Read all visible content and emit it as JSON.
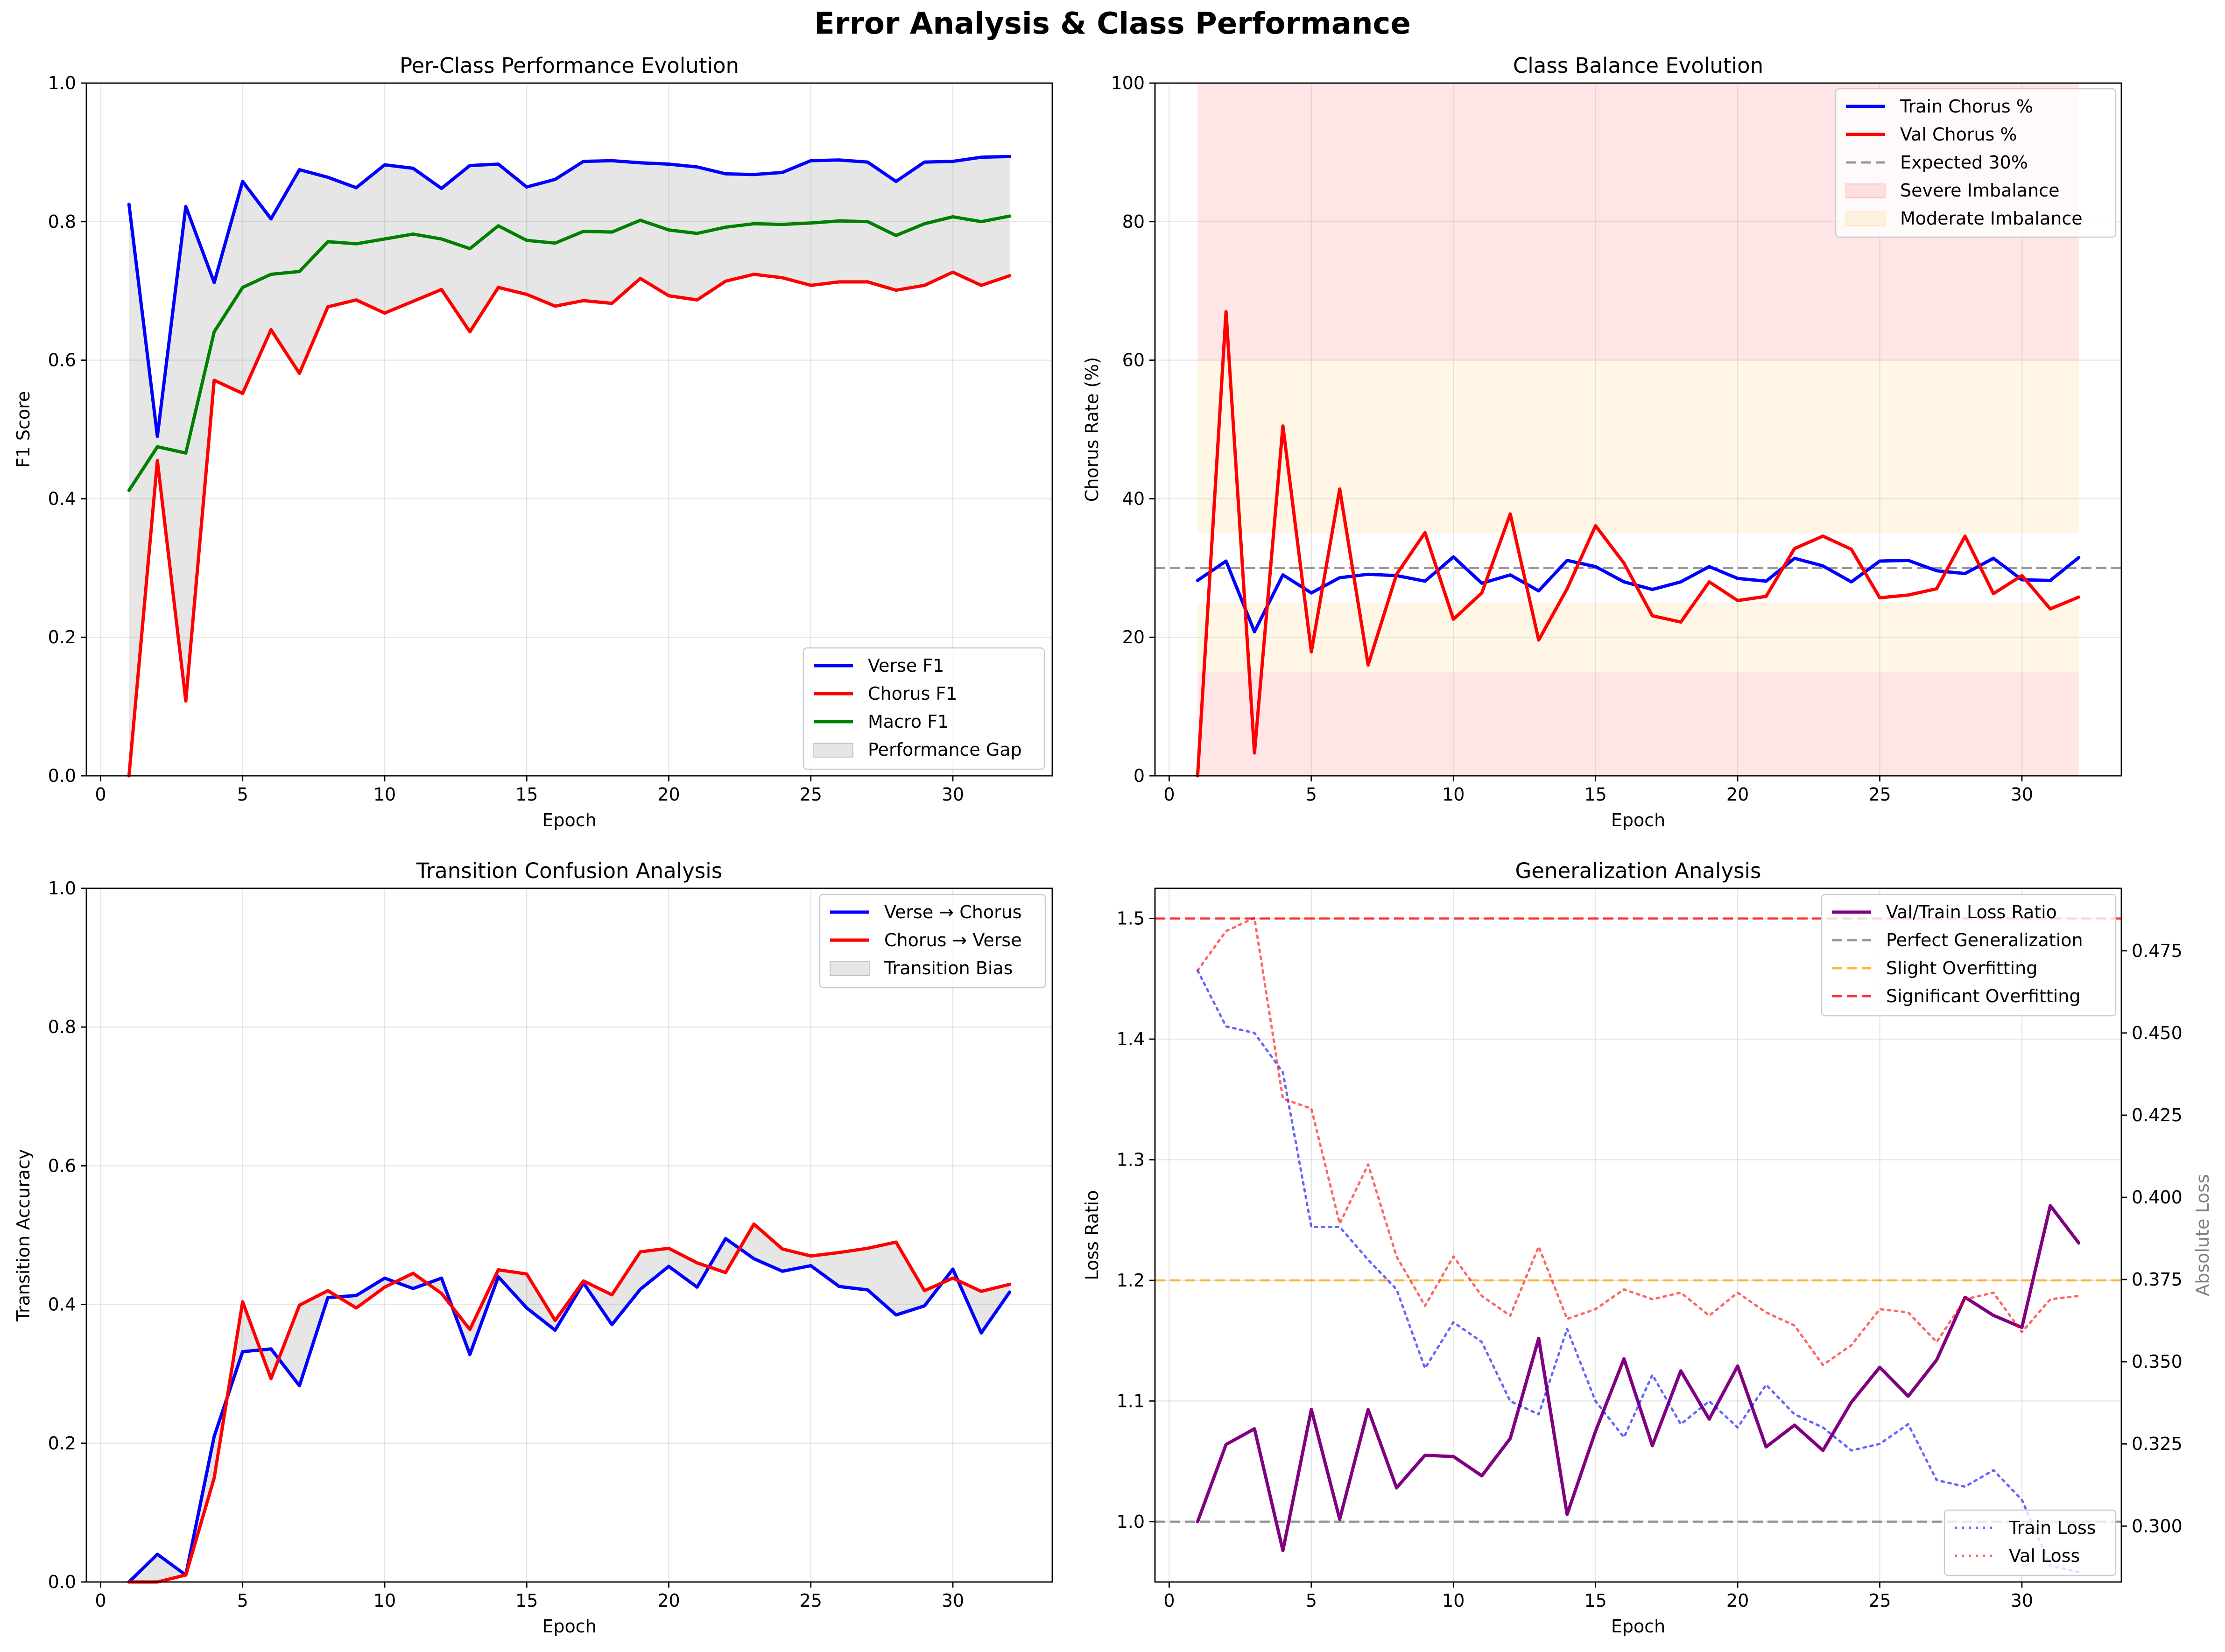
{
  "figure": {
    "suptitle": "Error Analysis & Class Performance"
  },
  "chart_data": [
    {
      "id": "p1",
      "type": "line",
      "title": "Per-Class Performance Evolution",
      "xlabel": "Epoch",
      "ylabel": "F1 Score",
      "xlim": [
        -0.5,
        33.5
      ],
      "ylim": [
        0,
        1.0
      ],
      "xticks": [
        0,
        5,
        10,
        15,
        20,
        25,
        30
      ],
      "yticks": [
        0.0,
        0.2,
        0.4,
        0.6,
        0.8,
        1.0
      ],
      "ytick_labels": [
        "0.0",
        "0.2",
        "0.4",
        "0.6",
        "0.8",
        "1.0"
      ],
      "grid": true,
      "legend_position": "lower-right",
      "x": [
        1,
        2,
        3,
        4,
        5,
        6,
        7,
        8,
        9,
        10,
        11,
        12,
        13,
        14,
        15,
        16,
        17,
        18,
        19,
        20,
        21,
        22,
        23,
        24,
        25,
        26,
        27,
        28,
        29,
        30,
        31,
        32
      ],
      "series": [
        {
          "name": "Verse F1",
          "color": "#0000ff",
          "style": "solid",
          "values": [
            0.825,
            0.49,
            0.822,
            0.712,
            0.858,
            0.804,
            0.875,
            0.864,
            0.849,
            0.882,
            0.877,
            0.848,
            0.881,
            0.883,
            0.85,
            0.861,
            0.887,
            0.888,
            0.885,
            0.883,
            0.879,
            0.869,
            0.868,
            0.871,
            0.888,
            0.889,
            0.886,
            0.858,
            0.886,
            0.887,
            0.893,
            0.894
          ]
        },
        {
          "name": "Chorus F1",
          "color": "#ff0000",
          "style": "solid",
          "values": [
            0.0,
            0.455,
            0.108,
            0.571,
            0.552,
            0.644,
            0.581,
            0.677,
            0.687,
            0.668,
            0.685,
            0.702,
            0.641,
            0.705,
            0.695,
            0.678,
            0.686,
            0.682,
            0.718,
            0.693,
            0.687,
            0.714,
            0.724,
            0.719,
            0.708,
            0.713,
            0.713,
            0.701,
            0.708,
            0.727,
            0.708,
            0.722
          ]
        },
        {
          "name": "Macro F1",
          "color": "#008000",
          "style": "solid",
          "values": [
            0.412,
            0.475,
            0.466,
            0.641,
            0.705,
            0.724,
            0.728,
            0.771,
            0.768,
            0.775,
            0.782,
            0.775,
            0.761,
            0.794,
            0.773,
            0.769,
            0.786,
            0.785,
            0.802,
            0.788,
            0.783,
            0.792,
            0.797,
            0.796,
            0.798,
            0.801,
            0.8,
            0.78,
            0.797,
            0.807,
            0.8,
            0.808
          ]
        }
      ],
      "fills": [
        {
          "name": "Performance Gap",
          "between": [
            "Verse F1",
            "Chorus F1"
          ],
          "color": "#808080",
          "alpha": 0.2
        }
      ]
    },
    {
      "id": "p2",
      "type": "line",
      "title": "Class Balance Evolution",
      "xlabel": "Epoch",
      "ylabel": "Chorus Rate (%)",
      "xlim": [
        -0.5,
        33.5
      ],
      "ylim": [
        0,
        100
      ],
      "xticks": [
        0,
        5,
        10,
        15,
        20,
        25,
        30
      ],
      "yticks": [
        0,
        20,
        40,
        60,
        80,
        100
      ],
      "ytick_labels": [
        "0",
        "20",
        "40",
        "60",
        "80",
        "100"
      ],
      "grid": true,
      "legend_position": "upper-right",
      "x": [
        1,
        2,
        3,
        4,
        5,
        6,
        7,
        8,
        9,
        10,
        11,
        12,
        13,
        14,
        15,
        16,
        17,
        18,
        19,
        20,
        21,
        22,
        23,
        24,
        25,
        26,
        27,
        28,
        29,
        30,
        31,
        32
      ],
      "series": [
        {
          "name": "Train Chorus %",
          "color": "#0000ff",
          "style": "solid",
          "values": [
            28.2,
            31.0,
            20.8,
            29.0,
            26.4,
            28.6,
            29.1,
            28.9,
            28.1,
            31.6,
            27.8,
            29.0,
            26.7,
            31.1,
            30.2,
            28.0,
            26.9,
            28.0,
            30.2,
            28.5,
            28.1,
            31.4,
            30.3,
            28.0,
            31.0,
            31.1,
            29.6,
            29.2,
            31.4,
            28.3,
            28.2,
            31.5
          ]
        },
        {
          "name": "Val Chorus %",
          "color": "#ff0000",
          "style": "solid",
          "values": [
            0.0,
            67.0,
            3.3,
            50.5,
            17.9,
            41.4,
            16.0,
            29.1,
            35.1,
            22.6,
            26.4,
            37.8,
            19.6,
            27.0,
            36.1,
            30.7,
            23.1,
            22.2,
            28.0,
            25.3,
            25.9,
            32.8,
            34.6,
            32.7,
            25.7,
            26.1,
            27.0,
            34.6,
            26.3,
            28.9,
            24.1,
            25.8
          ]
        }
      ],
      "reference_lines": [
        {
          "name": "Expected 30%",
          "y": 30,
          "color": "#808080",
          "style": "dashed",
          "alpha": 0.8
        }
      ],
      "bands": [
        {
          "name": "Severe Imbalance",
          "y0": 60,
          "y1": 100,
          "x0": 1,
          "x1": 32,
          "color": "#ff0000",
          "alpha": 0.1
        },
        {
          "name": "Severe Imbalance",
          "y0": 0,
          "y1": 15,
          "x0": 1,
          "x1": 32,
          "color": "#ff0000",
          "alpha": 0.1,
          "no_legend": true
        },
        {
          "name": "Moderate Imbalance",
          "y0": 35,
          "y1": 60,
          "x0": 1,
          "x1": 32,
          "color": "#ffa500",
          "alpha": 0.1
        },
        {
          "name": "Moderate Imbalance",
          "y0": 15,
          "y1": 25,
          "x0": 1,
          "x1": 32,
          "color": "#ffa500",
          "alpha": 0.1,
          "no_legend": true
        }
      ]
    },
    {
      "id": "p3",
      "type": "line",
      "title": "Transition Confusion Analysis",
      "xlabel": "Epoch",
      "ylabel": "Transition Accuracy",
      "xlim": [
        -0.5,
        33.5
      ],
      "ylim": [
        0,
        1.0
      ],
      "xticks": [
        0,
        5,
        10,
        15,
        20,
        25,
        30
      ],
      "yticks": [
        0.0,
        0.2,
        0.4,
        0.6,
        0.8,
        1.0
      ],
      "ytick_labels": [
        "0.0",
        "0.2",
        "0.4",
        "0.6",
        "0.8",
        "1.0"
      ],
      "grid": true,
      "legend_position": "upper-right",
      "x": [
        1,
        2,
        3,
        4,
        5,
        6,
        7,
        8,
        9,
        10,
        11,
        12,
        13,
        14,
        15,
        16,
        17,
        18,
        19,
        20,
        21,
        22,
        23,
        24,
        25,
        26,
        27,
        28,
        29,
        30,
        31,
        32
      ],
      "series": [
        {
          "name": "Verse → Chorus",
          "color": "#0000ff",
          "style": "solid",
          "values": [
            0.0,
            0.04,
            0.01,
            0.21,
            0.332,
            0.336,
            0.283,
            0.41,
            0.413,
            0.438,
            0.423,
            0.438,
            0.328,
            0.44,
            0.395,
            0.363,
            0.431,
            0.371,
            0.422,
            0.455,
            0.425,
            0.495,
            0.466,
            0.448,
            0.456,
            0.426,
            0.421,
            0.385,
            0.398,
            0.451,
            0.359,
            0.418
          ]
        },
        {
          "name": "Chorus → Verse",
          "color": "#ff0000",
          "style": "solid",
          "values": [
            0.0,
            0.0,
            0.01,
            0.15,
            0.404,
            0.293,
            0.399,
            0.42,
            0.395,
            0.425,
            0.445,
            0.416,
            0.364,
            0.45,
            0.444,
            0.377,
            0.434,
            0.414,
            0.476,
            0.481,
            0.46,
            0.446,
            0.516,
            0.48,
            0.47,
            0.475,
            0.481,
            0.49,
            0.42,
            0.438,
            0.419,
            0.429
          ]
        }
      ],
      "fills": [
        {
          "name": "Transition Bias",
          "between": [
            "Verse → Chorus",
            "Chorus → Verse"
          ],
          "color": "#808080",
          "alpha": 0.2
        }
      ]
    },
    {
      "id": "p4",
      "type": "line",
      "title": "Generalization Analysis",
      "xlabel": "Epoch",
      "ylabel": "Loss Ratio",
      "ylabel_right": "Absolute Loss",
      "xlim": [
        -0.5,
        33.5
      ],
      "ylim": [
        0.95,
        1.525
      ],
      "ylim_right": [
        0.283,
        0.494
      ],
      "xticks": [
        0,
        5,
        10,
        15,
        20,
        25,
        30
      ],
      "yticks": [
        1.0,
        1.1,
        1.2,
        1.3,
        1.4,
        1.5
      ],
      "ytick_labels": [
        "1.0",
        "1.1",
        "1.2",
        "1.3",
        "1.4",
        "1.5"
      ],
      "yticks_right": [
        0.3,
        0.325,
        0.35,
        0.375,
        0.4,
        0.425,
        0.45,
        0.475
      ],
      "ytick_labels_right": [
        "0.300",
        "0.325",
        "0.350",
        "0.375",
        "0.400",
        "0.425",
        "0.450",
        "0.475"
      ],
      "grid": true,
      "legend_position": "upper-right",
      "legend_right_position": "lower-right",
      "x": [
        1,
        2,
        3,
        4,
        5,
        6,
        7,
        8,
        9,
        10,
        11,
        12,
        13,
        14,
        15,
        16,
        17,
        18,
        19,
        20,
        21,
        22,
        23,
        24,
        25,
        26,
        27,
        28,
        29,
        30,
        31,
        32
      ],
      "series": [
        {
          "name": "Val/Train Loss Ratio",
          "color": "#800080",
          "style": "solid",
          "axis": "left",
          "values": [
            1.0,
            1.064,
            1.077,
            0.976,
            1.093,
            1.002,
            1.093,
            1.028,
            1.055,
            1.054,
            1.038,
            1.069,
            1.152,
            1.006,
            1.075,
            1.135,
            1.063,
            1.125,
            1.085,
            1.129,
            1.062,
            1.08,
            1.059,
            1.099,
            1.128,
            1.104,
            1.134,
            1.186,
            1.171,
            1.161,
            1.262,
            1.231
          ]
        },
        {
          "name": "Train Loss",
          "color": "#0000ff",
          "style": "dotted",
          "alpha": 0.6,
          "axis": "right",
          "values": [
            0.469,
            0.452,
            0.45,
            0.438,
            0.391,
            0.391,
            0.381,
            0.372,
            0.348,
            0.362,
            0.356,
            0.338,
            0.334,
            0.36,
            0.338,
            0.327,
            0.346,
            0.331,
            0.338,
            0.33,
            0.343,
            0.334,
            0.33,
            0.323,
            0.325,
            0.331,
            0.314,
            0.312,
            0.317,
            0.308,
            0.288,
            0.286
          ]
        },
        {
          "name": "Val Loss",
          "color": "#ff0000",
          "style": "dotted",
          "alpha": 0.6,
          "axis": "right",
          "values": [
            0.469,
            0.481,
            0.485,
            0.43,
            0.427,
            0.392,
            0.41,
            0.382,
            0.367,
            0.382,
            0.37,
            0.364,
            0.385,
            0.363,
            0.366,
            0.372,
            0.369,
            0.371,
            0.364,
            0.371,
            0.365,
            0.361,
            0.349,
            0.355,
            0.366,
            0.365,
            0.356,
            0.369,
            0.371,
            0.359,
            0.369,
            0.37
          ]
        }
      ],
      "reference_lines": [
        {
          "name": "Perfect Generalization",
          "y": 1.0,
          "color": "#808080",
          "style": "dashed",
          "alpha": 0.8
        },
        {
          "name": "Slight Overfitting",
          "y": 1.2,
          "color": "#ffa500",
          "style": "dashed",
          "alpha": 0.8
        },
        {
          "name": "Significant Overfitting",
          "y": 1.5,
          "color": "#ff0000",
          "style": "dashed",
          "alpha": 0.8
        }
      ]
    }
  ]
}
